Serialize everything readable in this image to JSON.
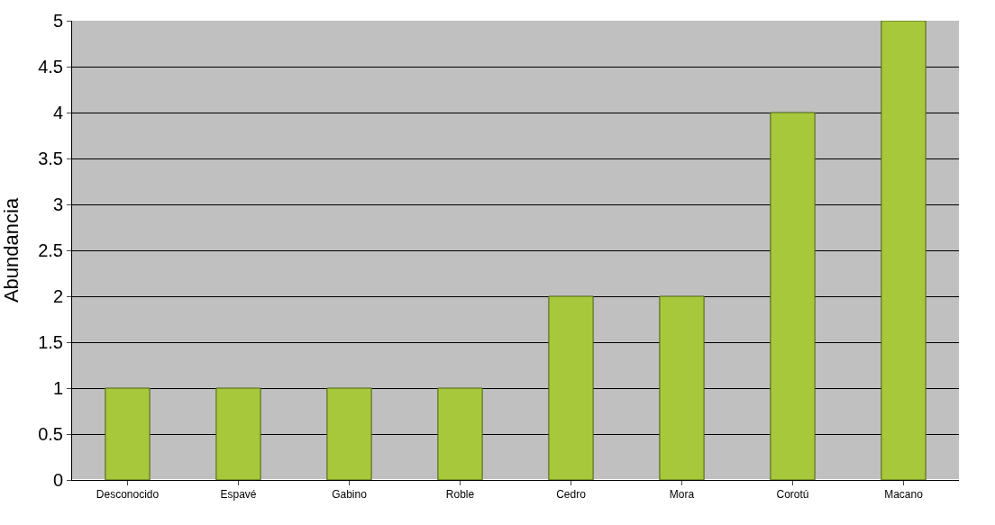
{
  "chart_data": {
    "type": "bar",
    "ylabel": "Abundancia",
    "categories": [
      "Desconocido",
      "Espavé",
      "Gabino",
      "Roble",
      "Cedro",
      "Mora",
      "Corotú",
      "Macano"
    ],
    "values": [
      1,
      1,
      1,
      1,
      2,
      2,
      4,
      5
    ],
    "color": "#a8c83c",
    "ylim": [
      0,
      5
    ],
    "yticks": [
      0,
      0.5,
      1,
      1.5,
      2,
      2.5,
      3,
      3.5,
      4,
      4.5,
      5
    ],
    "grid": "y"
  }
}
